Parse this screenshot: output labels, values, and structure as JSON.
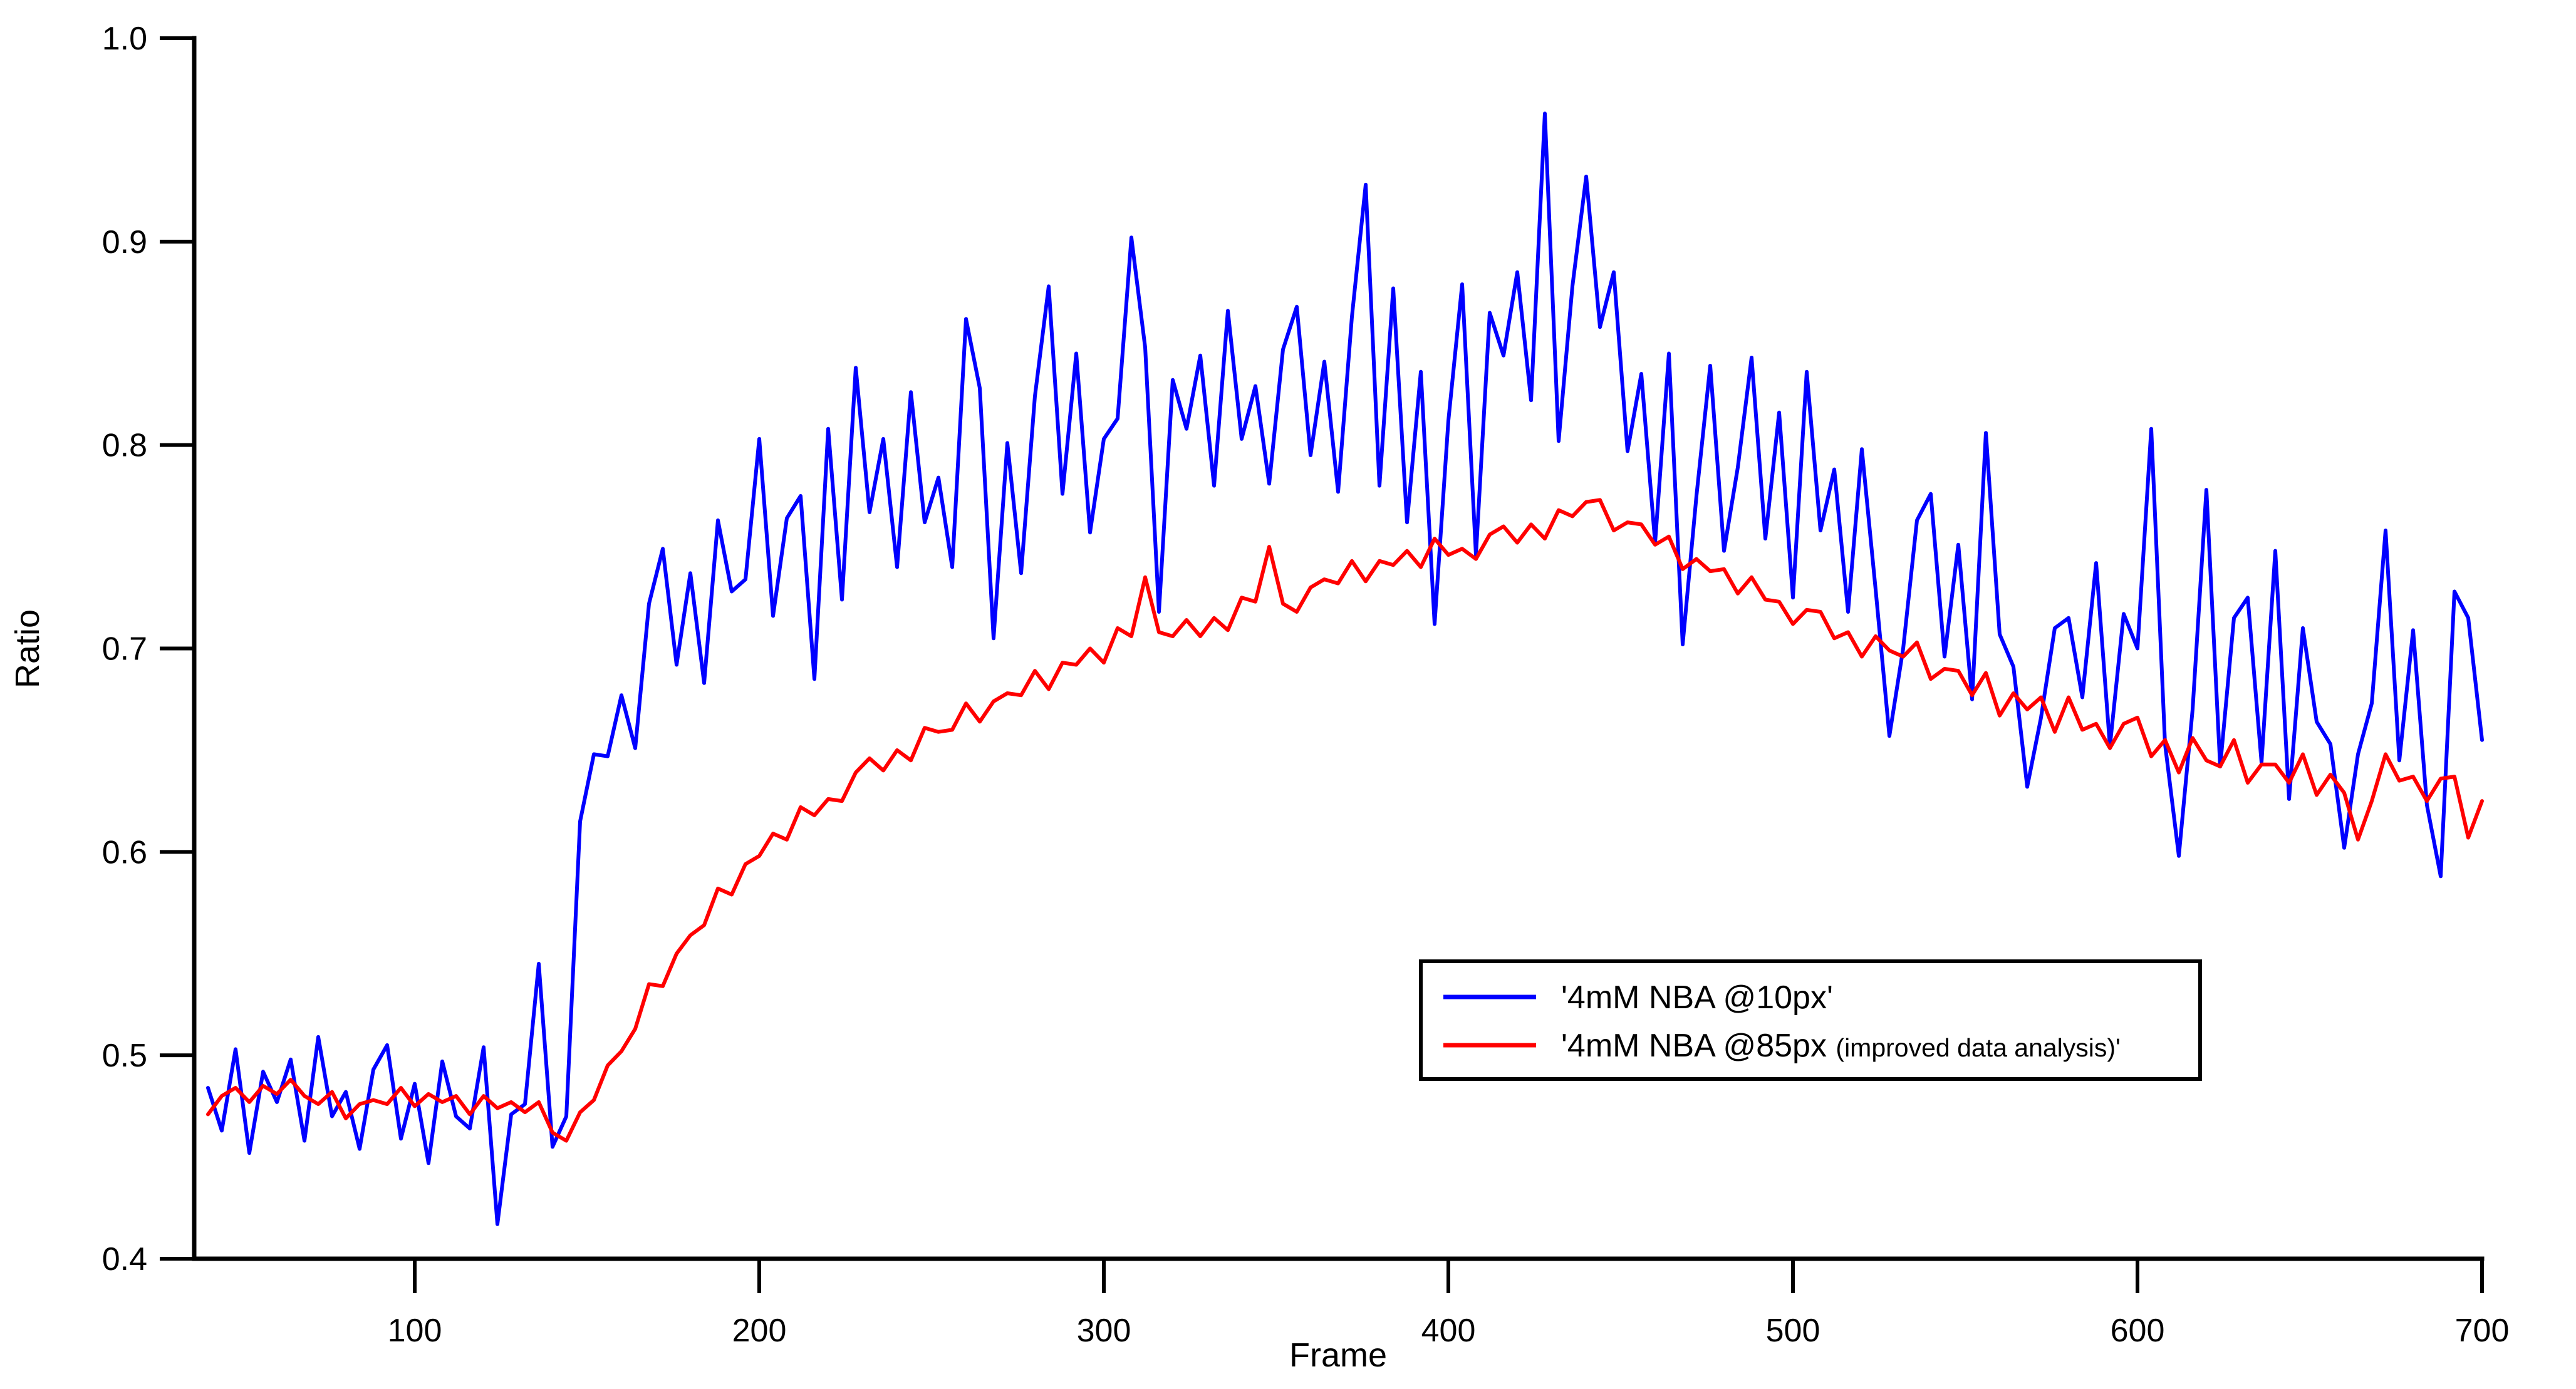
{
  "figure": {
    "background_color": "#ffffff",
    "axis_color": "#000000",
    "series_colors": {
      "blue": "#0000ff",
      "red": "#ff0000"
    }
  },
  "axes": {
    "x": {
      "label": "Frame",
      "tick_labels": [
        "100",
        "200",
        "300",
        "400",
        "500",
        "600",
        "700"
      ],
      "tick_values": [
        100,
        200,
        300,
        400,
        500,
        600,
        700
      ],
      "range": [
        36,
        700
      ]
    },
    "y": {
      "label": "Ratio",
      "tick_labels": [
        "0.4",
        "0.5",
        "0.6",
        "0.7",
        "0.8",
        "0.9",
        "1.0"
      ],
      "tick_values": [
        0.4,
        0.5,
        0.6,
        0.7,
        0.8,
        0.9,
        1.0
      ],
      "range": [
        0.4,
        1.0
      ]
    }
  },
  "legend": {
    "position": "inside-center-right",
    "items": [
      {
        "name": "series-10px",
        "color": "#0000ff",
        "label_main": "'4mM NBA @10px'",
        "label_small": ""
      },
      {
        "name": "series-85px",
        "color": "#ff0000",
        "label_main": "'4mM NBA @85px ",
        "label_small": "(improved data analysis)'"
      }
    ]
  },
  "chart_data": {
    "type": "line",
    "title": "",
    "xlabel": "Frame",
    "ylabel": "Ratio",
    "xlim": [
      36,
      700
    ],
    "ylim": [
      0.4,
      1.0
    ],
    "grid": false,
    "legend_position": "inside-center-right",
    "x": [
      40,
      44,
      48,
      52,
      56,
      60,
      64,
      68,
      72,
      76,
      80,
      84,
      88,
      92,
      96,
      100,
      104,
      108,
      112,
      116,
      120,
      124,
      128,
      132,
      136,
      140,
      144,
      148,
      152,
      156,
      160,
      164,
      168,
      172,
      176,
      180,
      184,
      188,
      192,
      196,
      200,
      204,
      208,
      212,
      216,
      220,
      224,
      228,
      232,
      236,
      240,
      244,
      248,
      252,
      256,
      260,
      264,
      268,
      272,
      276,
      280,
      284,
      288,
      292,
      296,
      300,
      304,
      308,
      312,
      316,
      320,
      324,
      328,
      332,
      336,
      340,
      344,
      348,
      352,
      356,
      360,
      364,
      368,
      372,
      376,
      380,
      384,
      388,
      392,
      396,
      400,
      404,
      408,
      412,
      416,
      420,
      424,
      428,
      432,
      436,
      440,
      444,
      448,
      452,
      456,
      460,
      464,
      468,
      472,
      476,
      480,
      484,
      488,
      492,
      496,
      500,
      504,
      508,
      512,
      516,
      520,
      524,
      528,
      532,
      536,
      540,
      544,
      548,
      552,
      556,
      560,
      564,
      568,
      572,
      576,
      580,
      584,
      588,
      592,
      596,
      600,
      604,
      608,
      612,
      616,
      620,
      624,
      628,
      632,
      636,
      640,
      644,
      648,
      652,
      656,
      660,
      664,
      668,
      672,
      676,
      680,
      684,
      688,
      692,
      696,
      700
    ],
    "series": [
      {
        "name": "'4mM NBA @10px'",
        "color": "#0000ff",
        "values": [
          0.484,
          0.463,
          0.503,
          0.452,
          0.492,
          0.477,
          0.498,
          0.458,
          0.509,
          0.47,
          0.482,
          0.454,
          0.493,
          0.505,
          0.459,
          0.486,
          0.447,
          0.497,
          0.47,
          0.464,
          0.504,
          0.417,
          0.471,
          0.476,
          0.545,
          0.455,
          0.47,
          0.615,
          0.648,
          0.647,
          0.677,
          0.651,
          0.722,
          0.749,
          0.692,
          0.737,
          0.683,
          0.763,
          0.728,
          0.734,
          0.803,
          0.716,
          0.764,
          0.775,
          0.685,
          0.808,
          0.724,
          0.838,
          0.767,
          0.803,
          0.74,
          0.826,
          0.762,
          0.784,
          0.74,
          0.862,
          0.828,
          0.705,
          0.801,
          0.737,
          0.824,
          0.878,
          0.776,
          0.845,
          0.757,
          0.803,
          0.813,
          0.902,
          0.848,
          0.718,
          0.832,
          0.808,
          0.844,
          0.78,
          0.866,
          0.803,
          0.829,
          0.781,
          0.847,
          0.868,
          0.795,
          0.841,
          0.777,
          0.863,
          0.928,
          0.78,
          0.877,
          0.762,
          0.836,
          0.712,
          0.812,
          0.879,
          0.746,
          0.865,
          0.844,
          0.885,
          0.822,
          0.963,
          0.802,
          0.878,
          0.932,
          0.858,
          0.885,
          0.797,
          0.835,
          0.752,
          0.845,
          0.702,
          0.775,
          0.839,
          0.748,
          0.789,
          0.843,
          0.754,
          0.816,
          0.725,
          0.836,
          0.758,
          0.788,
          0.718,
          0.798,
          0.729,
          0.657,
          0.7,
          0.763,
          0.776,
          0.696,
          0.751,
          0.675,
          0.806,
          0.707,
          0.691,
          0.632,
          0.666,
          0.71,
          0.715,
          0.676,
          0.742,
          0.652,
          0.717,
          0.7,
          0.808,
          0.653,
          0.598,
          0.67,
          0.778,
          0.642,
          0.715,
          0.725,
          0.644,
          0.748,
          0.626,
          0.71,
          0.664,
          0.653,
          0.602,
          0.648,
          0.673,
          0.758,
          0.645,
          0.709,
          0.623,
          0.588,
          0.728,
          0.715,
          0.655
        ]
      },
      {
        "name": "'4mM NBA @85px (improved data analysis)'",
        "color": "#ff0000",
        "values": [
          0.471,
          0.48,
          0.484,
          0.477,
          0.485,
          0.481,
          0.488,
          0.48,
          0.476,
          0.482,
          0.469,
          0.476,
          0.478,
          0.476,
          0.484,
          0.475,
          0.481,
          0.477,
          0.48,
          0.471,
          0.48,
          0.474,
          0.477,
          0.472,
          0.477,
          0.462,
          0.458,
          0.472,
          0.478,
          0.495,
          0.502,
          0.513,
          0.535,
          0.534,
          0.55,
          0.559,
          0.564,
          0.582,
          0.579,
          0.594,
          0.598,
          0.609,
          0.606,
          0.622,
          0.618,
          0.626,
          0.625,
          0.639,
          0.646,
          0.64,
          0.65,
          0.645,
          0.661,
          0.659,
          0.66,
          0.673,
          0.664,
          0.674,
          0.678,
          0.677,
          0.689,
          0.68,
          0.693,
          0.692,
          0.7,
          0.693,
          0.71,
          0.706,
          0.735,
          0.708,
          0.706,
          0.714,
          0.706,
          0.715,
          0.709,
          0.725,
          0.723,
          0.75,
          0.722,
          0.718,
          0.73,
          0.734,
          0.732,
          0.743,
          0.733,
          0.743,
          0.741,
          0.748,
          0.74,
          0.754,
          0.746,
          0.749,
          0.744,
          0.756,
          0.76,
          0.752,
          0.761,
          0.754,
          0.768,
          0.765,
          0.772,
          0.773,
          0.758,
          0.762,
          0.761,
          0.751,
          0.755,
          0.739,
          0.744,
          0.738,
          0.739,
          0.727,
          0.735,
          0.724,
          0.723,
          0.712,
          0.719,
          0.718,
          0.705,
          0.708,
          0.696,
          0.706,
          0.699,
          0.696,
          0.703,
          0.685,
          0.69,
          0.689,
          0.677,
          0.688,
          0.667,
          0.678,
          0.67,
          0.676,
          0.659,
          0.676,
          0.66,
          0.663,
          0.651,
          0.663,
          0.666,
          0.647,
          0.655,
          0.639,
          0.656,
          0.645,
          0.642,
          0.655,
          0.634,
          0.643,
          0.643,
          0.634,
          0.648,
          0.628,
          0.638,
          0.629,
          0.606,
          0.625,
          0.648,
          0.635,
          0.637,
          0.625,
          0.636,
          0.637,
          0.607,
          0.625
        ]
      }
    ]
  }
}
